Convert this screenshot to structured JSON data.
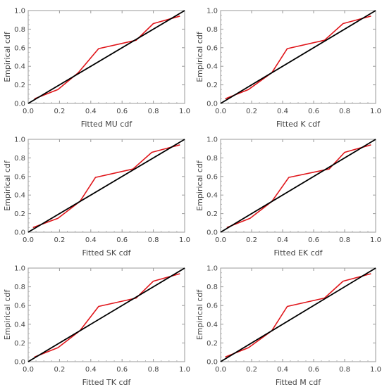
{
  "chart_data": [
    {
      "type": "line",
      "xlabel": "Fitted MU cdf",
      "ylabel": "Empirical cdf",
      "xlim": [
        0,
        1
      ],
      "ylim": [
        0,
        1
      ],
      "xticks": [
        "0.0",
        "0.2",
        "0.4",
        "0.6",
        "0.8",
        "1.0"
      ],
      "yticks": [
        "0.0",
        "0.2",
        "0.4",
        "0.6",
        "0.8",
        "1.0"
      ],
      "grid": false,
      "series": [
        {
          "color": "#e0161b",
          "x": [
            0.04,
            0.19,
            0.32,
            0.45,
            0.69,
            0.8,
            0.97
          ],
          "y": [
            0.05,
            0.15,
            0.33,
            0.59,
            0.68,
            0.86,
            0.94
          ]
        },
        {
          "color": "#000000",
          "x": [
            0,
            1
          ],
          "y": [
            0,
            1
          ]
        }
      ]
    },
    {
      "type": "line",
      "xlabel": "Fitted K cdf",
      "ylabel": "",
      "xlim": [
        0,
        1
      ],
      "ylim": [
        0,
        1
      ],
      "xticks": [
        "0.0",
        "0.2",
        "0.4",
        "0.6",
        "0.8",
        "1.0"
      ],
      "yticks": [
        "0.0",
        "0.2",
        "0.4",
        "0.6",
        "0.8",
        "1.0"
      ],
      "grid": false,
      "series": [
        {
          "color": "#e0161b",
          "x": [
            0.03,
            0.18,
            0.33,
            0.43,
            0.67,
            0.79,
            0.97
          ],
          "y": [
            0.05,
            0.15,
            0.33,
            0.59,
            0.68,
            0.86,
            0.94
          ]
        },
        {
          "color": "#000000",
          "x": [
            0,
            1
          ],
          "y": [
            0,
            1
          ]
        }
      ]
    },
    {
      "type": "line",
      "xlabel": "Fitted SK cdf",
      "ylabel": "Empirical cdf",
      "xlim": [
        0,
        1
      ],
      "ylim": [
        0,
        1
      ],
      "xticks": [
        "0.0",
        "0.2",
        "0.4",
        "0.6",
        "0.8",
        "1.0"
      ],
      "yticks": [
        "0.0",
        "0.2",
        "0.4",
        "0.6",
        "0.8",
        "1.0"
      ],
      "grid": false,
      "series": [
        {
          "color": "#e0161b",
          "x": [
            0.03,
            0.19,
            0.33,
            0.43,
            0.67,
            0.79,
            0.97
          ],
          "y": [
            0.05,
            0.15,
            0.33,
            0.59,
            0.68,
            0.86,
            0.94
          ]
        },
        {
          "color": "#000000",
          "x": [
            0,
            1
          ],
          "y": [
            0,
            1
          ]
        }
      ]
    },
    {
      "type": "line",
      "xlabel": "Fitted EK cdf",
      "ylabel": "",
      "xlim": [
        0,
        1
      ],
      "ylim": [
        0,
        1
      ],
      "xticks": [
        "0.0",
        "0.2",
        "0.4",
        "0.6",
        "0.8",
        "1.0"
      ],
      "yticks": [
        "0.0",
        "0.2",
        "0.4",
        "0.6",
        "0.8",
        "1.0"
      ],
      "grid": false,
      "series": [
        {
          "color": "#e0161b",
          "x": [
            0.04,
            0.19,
            0.33,
            0.44,
            0.7,
            0.8,
            0.97
          ],
          "y": [
            0.05,
            0.15,
            0.33,
            0.59,
            0.68,
            0.86,
            0.94
          ]
        },
        {
          "color": "#000000",
          "x": [
            0,
            1
          ],
          "y": [
            0,
            1
          ]
        }
      ]
    },
    {
      "type": "line",
      "xlabel": "Fitted TK cdf",
      "ylabel": "Empirical cdf",
      "xlim": [
        0,
        1
      ],
      "ylim": [
        0,
        1
      ],
      "xticks": [
        "0.0",
        "0.2",
        "0.4",
        "0.6",
        "0.8",
        "1.0"
      ],
      "yticks": [
        "0.0",
        "0.2",
        "0.4",
        "0.6",
        "0.8",
        "1.0"
      ],
      "grid": false,
      "series": [
        {
          "color": "#e0161b",
          "x": [
            0.04,
            0.19,
            0.33,
            0.45,
            0.69,
            0.8,
            0.97
          ],
          "y": [
            0.05,
            0.15,
            0.33,
            0.59,
            0.68,
            0.86,
            0.94
          ]
        },
        {
          "color": "#000000",
          "x": [
            0,
            1
          ],
          "y": [
            0,
            1
          ]
        }
      ]
    },
    {
      "type": "line",
      "xlabel": "Fitted M cdf",
      "ylabel": "",
      "xlim": [
        0,
        1
      ],
      "ylim": [
        0,
        1
      ],
      "xticks": [
        "0.0",
        "0.2",
        "0.4",
        "0.6",
        "0.8",
        "1.0"
      ],
      "yticks": [
        "0.0",
        "0.2",
        "0.4",
        "0.6",
        "0.8",
        "1.0"
      ],
      "grid": false,
      "series": [
        {
          "color": "#e0161b",
          "x": [
            0.03,
            0.18,
            0.33,
            0.43,
            0.67,
            0.79,
            0.97
          ],
          "y": [
            0.05,
            0.15,
            0.33,
            0.59,
            0.68,
            0.86,
            0.94
          ]
        },
        {
          "color": "#000000",
          "x": [
            0,
            1
          ],
          "y": [
            0,
            1
          ]
        }
      ]
    }
  ]
}
